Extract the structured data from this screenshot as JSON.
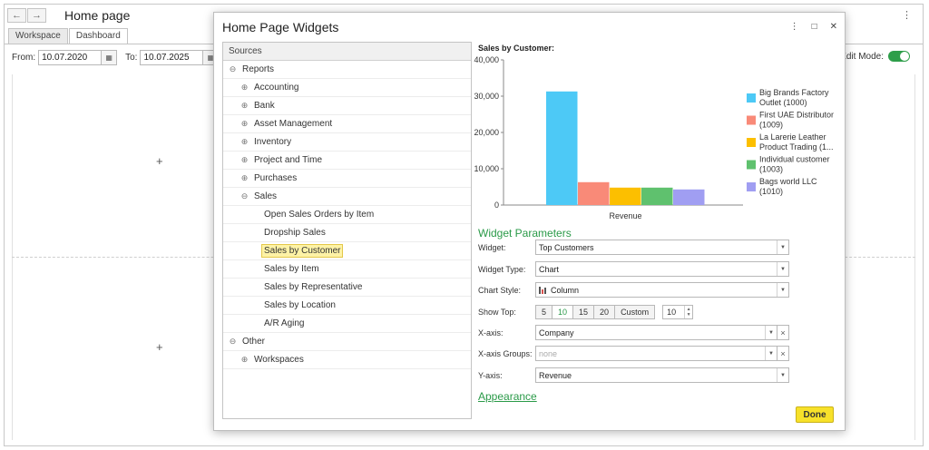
{
  "app": {
    "title": "Home page",
    "back_glyph": "←",
    "forward_glyph": "→",
    "more_glyph": "⋮",
    "tabs": [
      {
        "label": "Workspace",
        "active": false
      },
      {
        "label": "Dashboard",
        "active": true
      }
    ],
    "filters": {
      "from_label": "From:",
      "from_value": "10.07.2020",
      "to_label": "To:",
      "to_value": "10.07.2025",
      "calendar_glyph": "▦"
    },
    "edit_mode_label": "Edit Mode:",
    "edit_mode_on": true,
    "add_glyph": "+"
  },
  "modal": {
    "title": "Home Page Widgets",
    "controls": {
      "more": "⋮",
      "maximize": "□",
      "close": "✕"
    },
    "sources": {
      "header": "Sources",
      "items": [
        {
          "label": "Reports",
          "level": 0,
          "exp": "⊖"
        },
        {
          "label": "Accounting",
          "level": 1,
          "exp": "⊕"
        },
        {
          "label": "Bank",
          "level": 1,
          "exp": "⊕"
        },
        {
          "label": "Asset Management",
          "level": 1,
          "exp": "⊕"
        },
        {
          "label": "Inventory",
          "level": 1,
          "exp": "⊕"
        },
        {
          "label": "Project and Time",
          "level": 1,
          "exp": "⊕"
        },
        {
          "label": "Purchases",
          "level": 1,
          "exp": "⊕"
        },
        {
          "label": "Sales",
          "level": 1,
          "exp": "⊖"
        },
        {
          "label": "Open Sales Orders by Item",
          "level": 2,
          "exp": ""
        },
        {
          "label": "Dropship Sales",
          "level": 2,
          "exp": ""
        },
        {
          "label": "Sales by Customer",
          "level": 2,
          "exp": "",
          "selected": true
        },
        {
          "label": "Sales by Item",
          "level": 2,
          "exp": ""
        },
        {
          "label": "Sales by Representative",
          "level": 2,
          "exp": ""
        },
        {
          "label": "Sales by Location",
          "level": 2,
          "exp": ""
        },
        {
          "label": "A/R Aging",
          "level": 2,
          "exp": ""
        },
        {
          "label": "Other",
          "level": 0,
          "exp": "⊖"
        },
        {
          "label": "Workspaces",
          "level": 1,
          "exp": "⊕"
        }
      ]
    },
    "params": {
      "section_title": "Widget Parameters",
      "widget_label": "Widget:",
      "widget_value": "Top Customers",
      "widget_type_label": "Widget Type:",
      "widget_type_value": "Chart",
      "chart_style_label": "Chart Style:",
      "chart_style_value": "Column",
      "show_top_label": "Show Top:",
      "show_top_options": [
        "5",
        "10",
        "15",
        "20",
        "Custom"
      ],
      "show_top_selected": "10",
      "show_top_custom_value": "10",
      "x_axis_label": "X-axis:",
      "x_axis_value": "Company",
      "x_axis_groups_label": "X-axis Groups:",
      "x_axis_groups_placeholder": "none",
      "y_axis_label": "Y-axis:",
      "y_axis_value": "Revenue",
      "dropdown_glyph": "▼",
      "clear_glyph": "×",
      "step_up": "▲",
      "step_down": "▼"
    },
    "appearance_label": "Appearance",
    "done_label": "Done"
  },
  "chart_data": {
    "type": "bar",
    "title": "Sales by Customer:",
    "categories": [
      "Revenue"
    ],
    "ylim": [
      0,
      40000
    ],
    "yticks": [
      0,
      10000,
      20000,
      30000,
      40000
    ],
    "ytick_labels": [
      "0",
      "10,000",
      "20,000",
      "30,000",
      "40,000"
    ],
    "grid": false,
    "legend_position": "right",
    "series": [
      {
        "name": "Big Brands Factory Outlet (1000)",
        "legend_lines": [
          "Big Brands Factory",
          "Outlet (1000)"
        ],
        "values": [
          31300
        ],
        "color": "#4dc9f6"
      },
      {
        "name": "First UAE Distributor (1009)",
        "legend_lines": [
          "First UAE Distributor",
          "(1009)"
        ],
        "values": [
          6300
        ],
        "color": "#f98a78"
      },
      {
        "name": "La Larerie Leather Product Trading (1...",
        "legend_lines": [
          "La Larerie Leather",
          "Product Trading (1..."
        ],
        "values": [
          4800
        ],
        "color": "#fcbf00"
      },
      {
        "name": "Individual customer (1003)",
        "legend_lines": [
          "Individual customer",
          "(1003)"
        ],
        "values": [
          4800
        ],
        "color": "#5fc16e"
      },
      {
        "name": "Bags world LLC (1010)",
        "legend_lines": [
          "Bags world LLC",
          "(1010)"
        ],
        "values": [
          4300
        ],
        "color": "#a09ef2"
      }
    ]
  }
}
